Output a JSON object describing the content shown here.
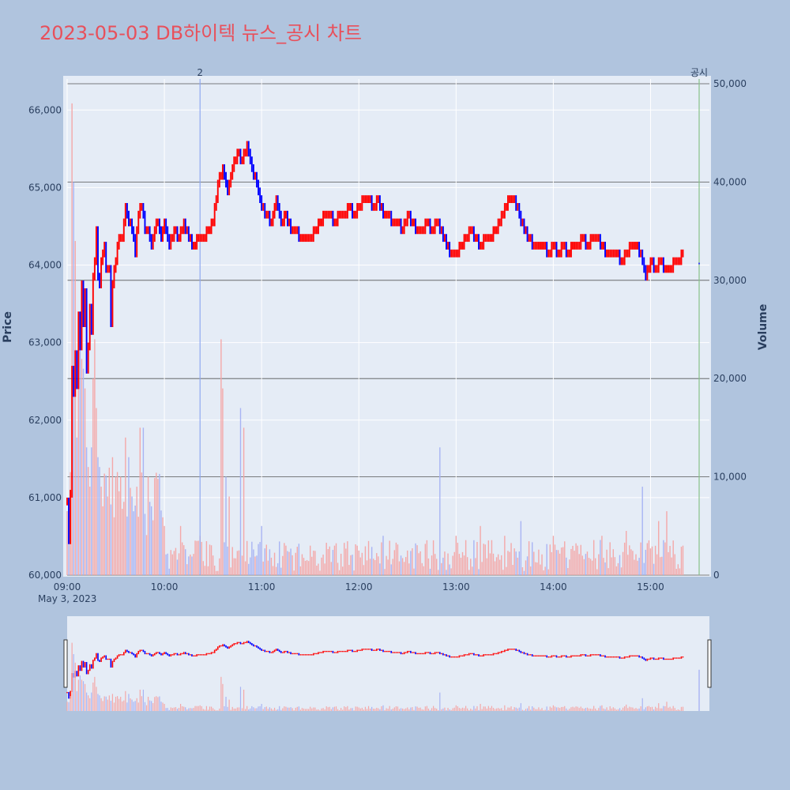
{
  "title": "2023-05-03 DB하이텍 뉴스_공시 차트",
  "chart_data": {
    "type": "candlestick",
    "title": "2023-05-03 DB하이텍 뉴스_공시 차트",
    "date_label": "May 3, 2023",
    "y_price_label": "Price",
    "y_volume_label": "Volume",
    "price_range": [
      60000,
      66400
    ],
    "volume_range": [
      0,
      50000
    ],
    "price_ticks": [
      "60,000",
      "61,000",
      "62,000",
      "63,000",
      "64,000",
      "65,000",
      "66,000"
    ],
    "volume_ticks": [
      "0",
      "10,000",
      "20,000",
      "30,000",
      "40,000",
      "50,000"
    ],
    "time_ticks": [
      "09:00",
      "10:00",
      "11:00",
      "12:00",
      "13:00",
      "14:00",
      "15:00"
    ],
    "colors": {
      "up": "#ff0000",
      "down": "#0000ff",
      "volume_up": "#f4a8a8",
      "volume_down": "#a8b4f4",
      "marker_news": "#8fa8f0",
      "marker_disclosure": "#88c088"
    },
    "markers": [
      {
        "time": "10:22",
        "label": "2"
      },
      {
        "time": "15:30",
        "label": "공시"
      }
    ],
    "price_path": [
      [
        "09:00",
        60900
      ],
      [
        "09:01",
        60400
      ],
      [
        "09:02",
        61000
      ],
      [
        "09:03",
        62600
      ],
      [
        "09:04",
        62300
      ],
      [
        "09:05",
        62800
      ],
      [
        "09:06",
        62400
      ],
      [
        "09:07",
        63300
      ],
      [
        "09:08",
        62900
      ],
      [
        "09:09",
        63700
      ],
      [
        "09:10",
        63200
      ],
      [
        "09:11",
        63600
      ],
      [
        "09:12",
        62600
      ],
      [
        "09:13",
        62900
      ],
      [
        "09:14",
        63400
      ],
      [
        "09:15",
        63100
      ],
      [
        "09:16",
        63800
      ],
      [
        "09:17",
        64000
      ],
      [
        "09:18",
        64400
      ],
      [
        "09:19",
        63800
      ],
      [
        "09:20",
        63700
      ],
      [
        "09:21",
        64000
      ],
      [
        "09:22",
        64100
      ],
      [
        "09:23",
        64200
      ],
      [
        "09:24",
        63900
      ],
      [
        "09:25",
        63900
      ],
      [
        "09:26",
        63900
      ],
      [
        "09:27",
        63200
      ],
      [
        "09:28",
        63700
      ],
      [
        "09:29",
        63900
      ],
      [
        "09:30",
        64000
      ],
      [
        "09:32",
        64300
      ],
      [
        "09:34",
        64300
      ],
      [
        "09:36",
        64700
      ],
      [
        "09:38",
        64500
      ],
      [
        "09:40",
        64400
      ],
      [
        "09:42",
        64100
      ],
      [
        "09:44",
        64600
      ],
      [
        "09:46",
        64700
      ],
      [
        "09:48",
        64400
      ],
      [
        "09:50",
        64400
      ],
      [
        "09:52",
        64200
      ],
      [
        "09:54",
        64400
      ],
      [
        "09:56",
        64500
      ],
      [
        "09:58",
        64300
      ],
      [
        "10:00",
        64500
      ],
      [
        "10:03",
        64200
      ],
      [
        "10:06",
        64400
      ],
      [
        "10:09",
        64300
      ],
      [
        "10:12",
        64500
      ],
      [
        "10:15",
        64300
      ],
      [
        "10:18",
        64200
      ],
      [
        "10:21",
        64300
      ],
      [
        "10:24",
        64300
      ],
      [
        "10:27",
        64400
      ],
      [
        "10:30",
        64500
      ],
      [
        "10:33",
        65000
      ],
      [
        "10:36",
        65200
      ],
      [
        "10:39",
        64900
      ],
      [
        "10:42",
        65200
      ],
      [
        "10:45",
        65400
      ],
      [
        "10:48",
        65300
      ],
      [
        "10:51",
        65500
      ],
      [
        "10:54",
        65200
      ],
      [
        "10:57",
        65000
      ],
      [
        "11:00",
        64700
      ],
      [
        "11:03",
        64600
      ],
      [
        "11:06",
        64500
      ],
      [
        "11:09",
        64800
      ],
      [
        "11:12",
        64500
      ],
      [
        "11:15",
        64600
      ],
      [
        "11:18",
        64400
      ],
      [
        "11:21",
        64400
      ],
      [
        "11:24",
        64300
      ],
      [
        "11:27",
        64300
      ],
      [
        "11:30",
        64300
      ],
      [
        "11:33",
        64400
      ],
      [
        "11:36",
        64500
      ],
      [
        "11:39",
        64600
      ],
      [
        "11:42",
        64600
      ],
      [
        "11:45",
        64500
      ],
      [
        "11:48",
        64600
      ],
      [
        "11:51",
        64600
      ],
      [
        "11:54",
        64700
      ],
      [
        "11:57",
        64600
      ],
      [
        "12:00",
        64700
      ],
      [
        "12:03",
        64800
      ],
      [
        "12:06",
        64800
      ],
      [
        "12:09",
        64700
      ],
      [
        "12:12",
        64800
      ],
      [
        "12:15",
        64600
      ],
      [
        "12:18",
        64600
      ],
      [
        "12:21",
        64500
      ],
      [
        "12:24",
        64500
      ],
      [
        "12:27",
        64400
      ],
      [
        "12:30",
        64600
      ],
      [
        "12:33",
        64500
      ],
      [
        "12:36",
        64400
      ],
      [
        "12:39",
        64400
      ],
      [
        "12:42",
        64500
      ],
      [
        "12:45",
        64400
      ],
      [
        "12:48",
        64500
      ],
      [
        "12:51",
        64400
      ],
      [
        "12:54",
        64200
      ],
      [
        "12:57",
        64100
      ],
      [
        "13:00",
        64100
      ],
      [
        "13:03",
        64200
      ],
      [
        "13:06",
        64300
      ],
      [
        "13:09",
        64400
      ],
      [
        "13:12",
        64300
      ],
      [
        "13:15",
        64200
      ],
      [
        "13:18",
        64300
      ],
      [
        "13:21",
        64300
      ],
      [
        "13:24",
        64400
      ],
      [
        "13:27",
        64500
      ],
      [
        "13:30",
        64700
      ],
      [
        "13:33",
        64800
      ],
      [
        "13:36",
        64800
      ],
      [
        "13:39",
        64600
      ],
      [
        "13:42",
        64400
      ],
      [
        "13:45",
        64300
      ],
      [
        "13:48",
        64200
      ],
      [
        "13:51",
        64200
      ],
      [
        "13:54",
        64200
      ],
      [
        "13:57",
        64100
      ],
      [
        "14:00",
        64200
      ],
      [
        "14:03",
        64100
      ],
      [
        "14:06",
        64200
      ],
      [
        "14:09",
        64100
      ],
      [
        "14:12",
        64200
      ],
      [
        "14:15",
        64200
      ],
      [
        "14:18",
        64300
      ],
      [
        "14:21",
        64200
      ],
      [
        "14:24",
        64300
      ],
      [
        "14:27",
        64300
      ],
      [
        "14:30",
        64200
      ],
      [
        "14:33",
        64100
      ],
      [
        "14:36",
        64100
      ],
      [
        "14:39",
        64100
      ],
      [
        "14:42",
        64000
      ],
      [
        "14:45",
        64100
      ],
      [
        "14:48",
        64200
      ],
      [
        "14:51",
        64200
      ],
      [
        "14:54",
        64100
      ],
      [
        "14:57",
        63800
      ],
      [
        "15:00",
        64000
      ],
      [
        "15:03",
        63900
      ],
      [
        "15:06",
        64000
      ],
      [
        "15:09",
        63900
      ],
      [
        "15:12",
        63900
      ],
      [
        "15:15",
        64000
      ],
      [
        "15:18",
        64000
      ],
      [
        "15:20",
        64100
      ]
    ],
    "volume_spikes": [
      [
        "09:03",
        48000
      ],
      [
        "09:04",
        40000
      ],
      [
        "09:05",
        34000
      ],
      [
        "09:06",
        14000
      ],
      [
        "09:07",
        22000
      ],
      [
        "09:08",
        25000
      ],
      [
        "09:09",
        22000
      ],
      [
        "09:10",
        21000
      ],
      [
        "09:11",
        19000
      ],
      [
        "09:12",
        13000
      ],
      [
        "09:13",
        11000
      ],
      [
        "09:14",
        9000
      ],
      [
        "09:15",
        13000
      ],
      [
        "09:16",
        20000
      ],
      [
        "09:17",
        24000
      ],
      [
        "09:18",
        17000
      ],
      [
        "09:19",
        12000
      ],
      [
        "09:20",
        11000
      ],
      [
        "09:21",
        9000
      ],
      [
        "09:22",
        7000
      ],
      [
        "09:25",
        8000
      ],
      [
        "09:28",
        12000
      ],
      [
        "09:30",
        10000
      ],
      [
        "09:33",
        10000
      ],
      [
        "09:36",
        14000
      ],
      [
        "09:38",
        12000
      ],
      [
        "09:40",
        8000
      ],
      [
        "09:43",
        9000
      ],
      [
        "09:45",
        15000
      ],
      [
        "09:47",
        15000
      ],
      [
        "09:50",
        10000
      ],
      [
        "09:52",
        7000
      ],
      [
        "10:00",
        5000
      ],
      [
        "10:10",
        5000
      ],
      [
        "10:22",
        4000
      ],
      [
        "10:30",
        2000
      ],
      [
        "10:35",
        24000
      ],
      [
        "10:36",
        19000
      ],
      [
        "10:38",
        10000
      ],
      [
        "10:40",
        8000
      ],
      [
        "10:47",
        17000
      ],
      [
        "10:49",
        15000
      ],
      [
        "11:00",
        5000
      ],
      [
        "11:15",
        3000
      ],
      [
        "11:30",
        3000
      ],
      [
        "11:45",
        3000
      ],
      [
        "12:00",
        2500
      ],
      [
        "12:15",
        4000
      ],
      [
        "12:30",
        2500
      ],
      [
        "12:45",
        2000
      ],
      [
        "12:50",
        13000
      ],
      [
        "13:00",
        4000
      ],
      [
        "13:15",
        5000
      ],
      [
        "13:30",
        4000
      ],
      [
        "13:40",
        5500
      ],
      [
        "14:00",
        4000
      ],
      [
        "14:15",
        3000
      ],
      [
        "14:30",
        4000
      ],
      [
        "14:45",
        4500
      ],
      [
        "14:55",
        9000
      ],
      [
        "15:05",
        5500
      ],
      [
        "15:10",
        6500
      ],
      [
        "15:20",
        3000
      ],
      [
        "15:30",
        29000
      ]
    ]
  }
}
